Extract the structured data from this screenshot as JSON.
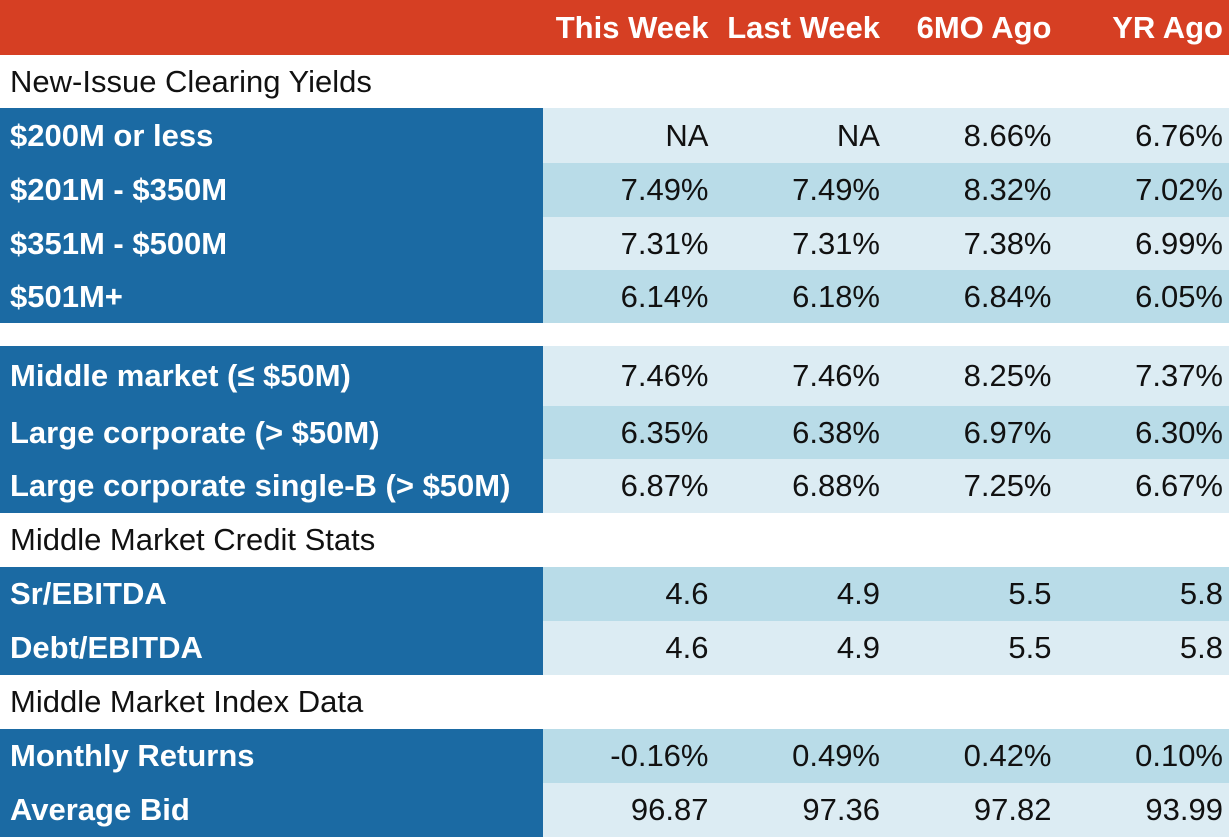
{
  "chart_data": {
    "type": "table",
    "columns": [
      "This Week",
      "Last Week",
      "6MO Ago",
      "YR Ago"
    ],
    "sections": [
      {
        "title": "New-Issue Clearing Yields",
        "rows": [
          {
            "label": "$200M or less",
            "values": [
              "NA",
              "NA",
              "8.66%",
              "6.76%"
            ]
          },
          {
            "label": "$201M - $350M",
            "values": [
              "7.49%",
              "7.49%",
              "8.32%",
              "7.02%"
            ]
          },
          {
            "label": "$351M - $500M",
            "values": [
              "7.31%",
              "7.31%",
              "7.38%",
              "6.99%"
            ]
          },
          {
            "label": "$501M+",
            "values": [
              "6.14%",
              "6.18%",
              "6.84%",
              "6.05%"
            ]
          }
        ]
      },
      {
        "title": "",
        "rows": [
          {
            "label": "Middle market (≤ $50M)",
            "values": [
              "7.46%",
              "7.46%",
              "8.25%",
              "7.37%"
            ]
          },
          {
            "label": "Large corporate (> $50M)",
            "values": [
              "6.35%",
              "6.38%",
              "6.97%",
              "6.30%"
            ]
          },
          {
            "label": "Large corporate single-B (> $50M)",
            "values": [
              "6.87%",
              "6.88%",
              "7.25%",
              "6.67%"
            ]
          }
        ]
      },
      {
        "title": "Middle Market Credit Stats",
        "rows": [
          {
            "label": "Sr/EBITDA",
            "values": [
              "4.6",
              "4.9",
              "5.5",
              "5.8"
            ]
          },
          {
            "label": "Debt/EBITDA",
            "values": [
              "4.6",
              "4.9",
              "5.5",
              "5.8"
            ]
          }
        ]
      },
      {
        "title": "Middle Market Index Data",
        "rows": [
          {
            "label": "Monthly Returns",
            "values": [
              "-0.16%",
              "0.49%",
              "0.42%",
              "0.10%"
            ]
          },
          {
            "label": "Average Bid",
            "values": [
              "96.87",
              "97.36",
              "97.82",
              "93.99"
            ]
          }
        ]
      }
    ],
    "colors": {
      "header_bg": "#d63f23",
      "row_label_bg": "#1b6aa3",
      "row_light_bg": "#dcecf3",
      "row_mid_bg": "#b9dce8"
    }
  }
}
